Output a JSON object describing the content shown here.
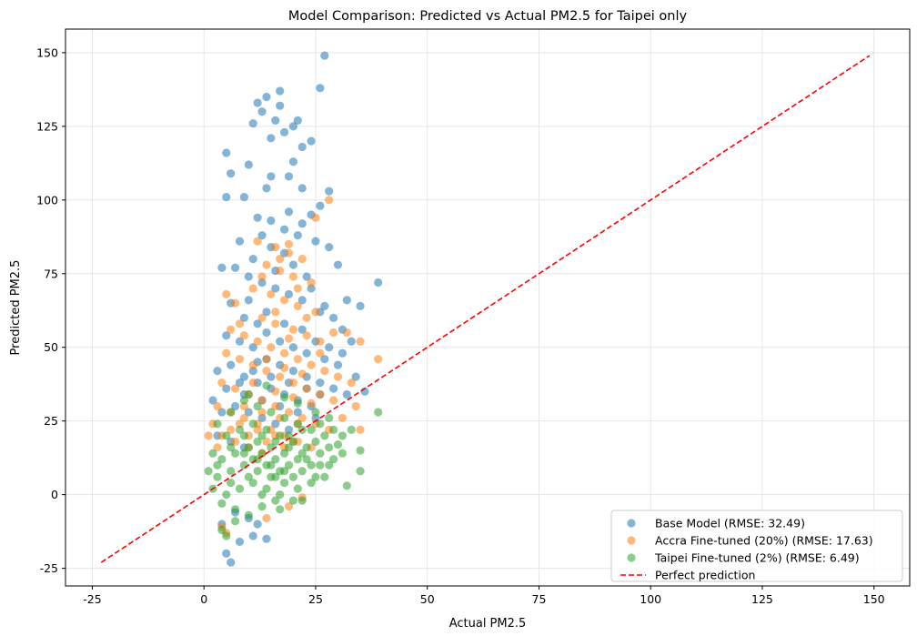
{
  "chart_data": {
    "type": "scatter",
    "title": "Model Comparison: Predicted vs Actual PM2.5 for Taipei only",
    "xlabel": "Actual PM2.5",
    "ylabel": "Predicted PM2.5",
    "xlim": [
      -31,
      158
    ],
    "ylim": [
      -31,
      158
    ],
    "xticks": [
      -25,
      0,
      25,
      50,
      75,
      100,
      125,
      150
    ],
    "yticks": [
      -25,
      0,
      25,
      50,
      75,
      100,
      125,
      150
    ],
    "grid": true,
    "legend_position": "lower-right",
    "series": [
      {
        "name": "Base Model (RMSE: 32.49)",
        "color": "#1f77b4",
        "points": [
          [
            12,
            133
          ],
          [
            14,
            135
          ],
          [
            13,
            130
          ],
          [
            17,
            137
          ],
          [
            17,
            132
          ],
          [
            16,
            127
          ],
          [
            21,
            127
          ],
          [
            20,
            125
          ],
          [
            24,
            120
          ],
          [
            22,
            118
          ],
          [
            27,
            149
          ],
          [
            26,
            138
          ],
          [
            15,
            121
          ],
          [
            11,
            126
          ],
          [
            18,
            123
          ],
          [
            5,
            116
          ],
          [
            10,
            112
          ],
          [
            6,
            109
          ],
          [
            15,
            108
          ],
          [
            19,
            108
          ],
          [
            20,
            113
          ],
          [
            14,
            104
          ],
          [
            9,
            101
          ],
          [
            5,
            101
          ],
          [
            22,
            104
          ],
          [
            26,
            98
          ],
          [
            24,
            95
          ],
          [
            28,
            103
          ],
          [
            12,
            94
          ],
          [
            15,
            93
          ],
          [
            18,
            90
          ],
          [
            21,
            88
          ],
          [
            25,
            86
          ],
          [
            28,
            84
          ],
          [
            30,
            78
          ],
          [
            32,
            66
          ],
          [
            35,
            64
          ],
          [
            39,
            72
          ],
          [
            8,
            86
          ],
          [
            7,
            77
          ],
          [
            4,
            77
          ],
          [
            10,
            74
          ],
          [
            13,
            72
          ],
          [
            16,
            70
          ],
          [
            19,
            68
          ],
          [
            22,
            66
          ],
          [
            26,
            62
          ],
          [
            29,
            60
          ],
          [
            31,
            56
          ],
          [
            33,
            52
          ],
          [
            6,
            65
          ],
          [
            9,
            60
          ],
          [
            12,
            58
          ],
          [
            14,
            55
          ],
          [
            17,
            52
          ],
          [
            20,
            50
          ],
          [
            23,
            48
          ],
          [
            27,
            46
          ],
          [
            30,
            44
          ],
          [
            34,
            40
          ],
          [
            36,
            35
          ],
          [
            5,
            54
          ],
          [
            8,
            52
          ],
          [
            11,
            50
          ],
          [
            3,
            42
          ],
          [
            6,
            44
          ],
          [
            9,
            40
          ],
          [
            12,
            38
          ],
          [
            15,
            36
          ],
          [
            18,
            34
          ],
          [
            21,
            32
          ],
          [
            24,
            30
          ],
          [
            2,
            32
          ],
          [
            4,
            28
          ],
          [
            7,
            30
          ],
          [
            10,
            28
          ],
          [
            13,
            26
          ],
          [
            16,
            24
          ],
          [
            19,
            22
          ],
          [
            5,
            36
          ],
          [
            8,
            38
          ],
          [
            11,
            42
          ],
          [
            14,
            46
          ],
          [
            17,
            44
          ],
          [
            20,
            42
          ],
          [
            23,
            40
          ],
          [
            26,
            38
          ],
          [
            29,
            36
          ],
          [
            32,
            34
          ],
          [
            3,
            20
          ],
          [
            6,
            18
          ],
          [
            9,
            16
          ],
          [
            7,
            -6
          ],
          [
            10,
            -8
          ],
          [
            12,
            -10
          ],
          [
            14,
            -15
          ],
          [
            5,
            -20
          ],
          [
            6,
            -23
          ],
          [
            8,
            -16
          ],
          [
            11,
            -14
          ],
          [
            4,
            -10
          ],
          [
            18,
            82
          ],
          [
            20,
            78
          ],
          [
            15,
            84
          ],
          [
            23,
            74
          ],
          [
            13,
            88
          ],
          [
            22,
            92
          ],
          [
            19,
            96
          ],
          [
            11,
            80
          ],
          [
            16,
            76
          ],
          [
            24,
            70
          ],
          [
            27,
            64
          ],
          [
            10,
            66
          ],
          [
            14,
            62
          ],
          [
            18,
            58
          ],
          [
            22,
            56
          ],
          [
            25,
            52
          ],
          [
            28,
            50
          ],
          [
            31,
            48
          ],
          [
            12,
            45
          ],
          [
            15,
            40
          ],
          [
            19,
            38
          ],
          [
            23,
            36
          ],
          [
            26,
            34
          ],
          [
            9,
            34
          ],
          [
            13,
            32
          ],
          [
            17,
            30
          ],
          [
            21,
            28
          ],
          [
            25,
            26
          ]
        ]
      },
      {
        "name": "Accra Fine-tuned (20%) (RMSE: 17.63)",
        "color": "#ff7f0e",
        "points": [
          [
            28,
            100
          ],
          [
            25,
            94
          ],
          [
            12,
            86
          ],
          [
            16,
            84
          ],
          [
            19,
            82
          ],
          [
            22,
            80
          ],
          [
            14,
            78
          ],
          [
            17,
            76
          ],
          [
            20,
            74
          ],
          [
            24,
            72
          ],
          [
            11,
            70
          ],
          [
            15,
            68
          ],
          [
            18,
            66
          ],
          [
            21,
            64
          ],
          [
            25,
            62
          ],
          [
            8,
            58
          ],
          [
            13,
            60
          ],
          [
            16,
            58
          ],
          [
            20,
            56
          ],
          [
            23,
            54
          ],
          [
            26,
            52
          ],
          [
            29,
            55
          ],
          [
            32,
            55
          ],
          [
            35,
            52
          ],
          [
            39,
            46
          ],
          [
            6,
            56
          ],
          [
            9,
            54
          ],
          [
            12,
            52
          ],
          [
            15,
            50
          ],
          [
            18,
            48
          ],
          [
            21,
            46
          ],
          [
            24,
            44
          ],
          [
            27,
            42
          ],
          [
            30,
            40
          ],
          [
            33,
            38
          ],
          [
            5,
            48
          ],
          [
            8,
            46
          ],
          [
            11,
            44
          ],
          [
            14,
            42
          ],
          [
            17,
            40
          ],
          [
            20,
            38
          ],
          [
            23,
            36
          ],
          [
            26,
            34
          ],
          [
            29,
            32
          ],
          [
            4,
            38
          ],
          [
            7,
            36
          ],
          [
            10,
            34
          ],
          [
            13,
            32
          ],
          [
            16,
            30
          ],
          [
            19,
            28
          ],
          [
            22,
            26
          ],
          [
            25,
            24
          ],
          [
            28,
            22
          ],
          [
            31,
            26
          ],
          [
            34,
            30
          ],
          [
            35,
            22
          ],
          [
            3,
            30
          ],
          [
            6,
            28
          ],
          [
            9,
            26
          ],
          [
            12,
            24
          ],
          [
            15,
            22
          ],
          [
            18,
            20
          ],
          [
            21,
            18
          ],
          [
            24,
            16
          ],
          [
            2,
            24
          ],
          [
            4,
            20
          ],
          [
            7,
            18
          ],
          [
            10,
            16
          ],
          [
            13,
            14
          ],
          [
            1,
            20
          ],
          [
            3,
            16
          ],
          [
            5,
            68
          ],
          [
            7,
            65
          ],
          [
            4,
            -11
          ],
          [
            5,
            -13
          ],
          [
            14,
            -8
          ],
          [
            19,
            -4
          ],
          [
            22,
            -1
          ],
          [
            17,
            80
          ],
          [
            19,
            85
          ],
          [
            13,
            74
          ],
          [
            21,
            70
          ],
          [
            16,
            62
          ],
          [
            23,
            60
          ],
          [
            19,
            53
          ],
          [
            26,
            48
          ],
          [
            14,
            46
          ],
          [
            18,
            43
          ],
          [
            22,
            41
          ],
          [
            11,
            38
          ],
          [
            16,
            35
          ],
          [
            20,
            33
          ],
          [
            24,
            31
          ],
          [
            9,
            30
          ],
          [
            13,
            28
          ],
          [
            17,
            26
          ],
          [
            21,
            24
          ],
          [
            8,
            24
          ],
          [
            12,
            22
          ],
          [
            16,
            20
          ],
          [
            20,
            18
          ],
          [
            6,
            22
          ],
          [
            10,
            20
          ],
          [
            14,
            18
          ],
          [
            18,
            16
          ]
        ]
      },
      {
        "name": "Taipei Fine-tuned (2%) (RMSE: 6.49)",
        "color": "#2ca02c",
        "points": [
          [
            14,
            37
          ],
          [
            10,
            34
          ],
          [
            18,
            33
          ],
          [
            21,
            31
          ],
          [
            25,
            28
          ],
          [
            28,
            26
          ],
          [
            33,
            22
          ],
          [
            35,
            15
          ],
          [
            35,
            8
          ],
          [
            39,
            28
          ],
          [
            32,
            3
          ],
          [
            30,
            17
          ],
          [
            27,
            20
          ],
          [
            24,
            22
          ],
          [
            21,
            24
          ],
          [
            18,
            26
          ],
          [
            15,
            28
          ],
          [
            12,
            30
          ],
          [
            9,
            32
          ],
          [
            6,
            28
          ],
          [
            3,
            24
          ],
          [
            5,
            20
          ],
          [
            8,
            22
          ],
          [
            11,
            24
          ],
          [
            14,
            22
          ],
          [
            17,
            20
          ],
          [
            20,
            18
          ],
          [
            23,
            16
          ],
          [
            26,
            14
          ],
          [
            29,
            12
          ],
          [
            2,
            14
          ],
          [
            4,
            12
          ],
          [
            7,
            14
          ],
          [
            10,
            16
          ],
          [
            13,
            14
          ],
          [
            16,
            12
          ],
          [
            19,
            10
          ],
          [
            22,
            8
          ],
          [
            25,
            6
          ],
          [
            28,
            10
          ],
          [
            31,
            14
          ],
          [
            1,
            8
          ],
          [
            3,
            6
          ],
          [
            6,
            8
          ],
          [
            9,
            10
          ],
          [
            12,
            8
          ],
          [
            15,
            6
          ],
          [
            18,
            4
          ],
          [
            21,
            2
          ],
          [
            24,
            4
          ],
          [
            27,
            6
          ],
          [
            2,
            2
          ],
          [
            5,
            0
          ],
          [
            8,
            2
          ],
          [
            11,
            4
          ],
          [
            14,
            2
          ],
          [
            17,
            0
          ],
          [
            20,
            -2
          ],
          [
            4,
            -3
          ],
          [
            7,
            -5
          ],
          [
            10,
            -7
          ],
          [
            13,
            -4
          ],
          [
            16,
            -2
          ],
          [
            7,
            -9
          ],
          [
            4,
            -12
          ],
          [
            5,
            -14
          ],
          [
            17,
            -5
          ],
          [
            22,
            -2
          ],
          [
            12,
            18
          ],
          [
            15,
            16
          ],
          [
            18,
            14
          ],
          [
            21,
            12
          ],
          [
            24,
            10
          ],
          [
            9,
            20
          ],
          [
            13,
            20
          ],
          [
            16,
            18
          ],
          [
            19,
            16
          ],
          [
            22,
            14
          ],
          [
            25,
            18
          ],
          [
            28,
            16
          ],
          [
            31,
            20
          ],
          [
            11,
            12
          ],
          [
            14,
            10
          ],
          [
            17,
            8
          ],
          [
            20,
            6
          ],
          [
            23,
            12
          ],
          [
            26,
            10
          ],
          [
            6,
            16
          ],
          [
            9,
            14
          ],
          [
            12,
            12
          ],
          [
            15,
            10
          ],
          [
            18,
            8
          ],
          [
            3,
            10
          ],
          [
            6,
            4
          ],
          [
            10,
            6
          ],
          [
            13,
            0
          ],
          [
            16,
            6
          ],
          [
            19,
            20
          ],
          [
            22,
            22
          ],
          [
            26,
            24
          ],
          [
            29,
            22
          ]
        ]
      },
      {
        "name": "Perfect prediction",
        "color": "#ff0000",
        "line": [
          [
            -23,
            -23
          ],
          [
            149,
            149
          ]
        ]
      }
    ]
  }
}
